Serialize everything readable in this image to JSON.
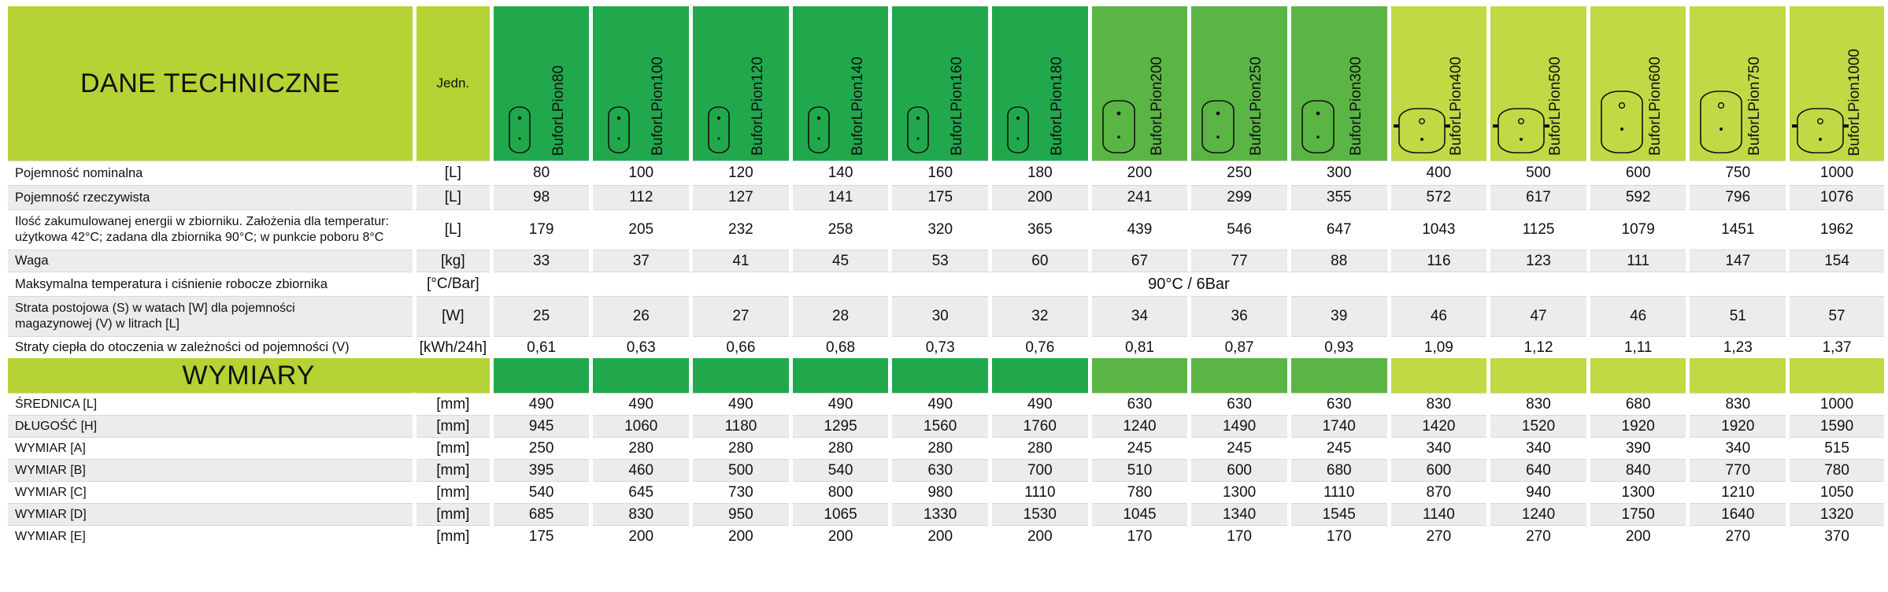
{
  "header": {
    "title": "DANE TECHNICZNE",
    "unit_header": "Jedn."
  },
  "models": [
    {
      "name": "BuforLPion80",
      "group": "g1",
      "tank": "s"
    },
    {
      "name": "BuforLPion100",
      "group": "g1",
      "tank": "s"
    },
    {
      "name": "BuforLPion120",
      "group": "g1",
      "tank": "s"
    },
    {
      "name": "BuforLPion140",
      "group": "g1",
      "tank": "s"
    },
    {
      "name": "BuforLPion160",
      "group": "g1",
      "tank": "s"
    },
    {
      "name": "BuforLPion180",
      "group": "g1",
      "tank": "s"
    },
    {
      "name": "BuforLPion200",
      "group": "g2",
      "tank": "m"
    },
    {
      "name": "BuforLPion250",
      "group": "g2",
      "tank": "m"
    },
    {
      "name": "BuforLPion300",
      "group": "g2",
      "tank": "m"
    },
    {
      "name": "BuforLPion400",
      "group": "g3",
      "tank": "w"
    },
    {
      "name": "BuforLPion500",
      "group": "g3",
      "tank": "w"
    },
    {
      "name": "BuforLPion600",
      "group": "g3",
      "tank": "t"
    },
    {
      "name": "BuforLPion750",
      "group": "g3",
      "tank": "t"
    },
    {
      "name": "BuforLPion1000",
      "group": "g3",
      "tank": "w"
    }
  ],
  "technical_rows": [
    {
      "label": "Pojemność nominalna",
      "unit": "[L]",
      "values": [
        "80",
        "100",
        "120",
        "140",
        "160",
        "180",
        "200",
        "250",
        "300",
        "400",
        "500",
        "600",
        "750",
        "1000"
      ]
    },
    {
      "label": "Pojemność rzeczywista",
      "unit": "[L]",
      "values": [
        "98",
        "112",
        "127",
        "141",
        "175",
        "200",
        "241",
        "299",
        "355",
        "572",
        "617",
        "592",
        "796",
        "1076"
      ]
    },
    {
      "label": "Ilość zakumulowanej energii w zbiorniku. Założenia dla temperatur: użytkowa 42°C; zadana dla zbiornika 90°C; w punkcie poboru 8°C",
      "label_line1": "Ilość zakumulowanej energii w zbiorniku. Założenia dla temperatur:",
      "label_line2": "użytkowa 42°C; zadana dla zbiornika 90°C; w punkcie poboru 8°C",
      "unit": "[L]",
      "values": [
        "179",
        "205",
        "232",
        "258",
        "320",
        "365",
        "439",
        "546",
        "647",
        "1043",
        "1125",
        "1079",
        "1451",
        "1962"
      ]
    },
    {
      "label": "Waga",
      "unit": "[kg]",
      "values": [
        "33",
        "37",
        "41",
        "45",
        "53",
        "60",
        "67",
        "77",
        "88",
        "116",
        "123",
        "111",
        "147",
        "154"
      ]
    },
    {
      "label": "Maksymalna temperatura i ciśnienie robocze zbiornika",
      "unit": "[°C/Bar]",
      "span_value": "90°C / 6Bar"
    },
    {
      "label_line1": "Strata postojowa (S) w watach [W] dla pojemności",
      "label_line2": "magazynowej (V) w litrach [L]",
      "unit": "[W]",
      "values": [
        "25",
        "26",
        "27",
        "28",
        "30",
        "32",
        "34",
        "36",
        "39",
        "46",
        "47",
        "46",
        "51",
        "57"
      ]
    },
    {
      "label": "Straty ciepła do otoczenia w zależności od pojemności (V)",
      "unit": "[kWh/24h]",
      "values": [
        "0,61",
        "0,63",
        "0,66",
        "0,68",
        "0,73",
        "0,76",
        "0,81",
        "0,87",
        "0,93",
        "1,09",
        "1,12",
        "1,11",
        "1,23",
        "1,37"
      ]
    }
  ],
  "dimensions_section": {
    "title": "WYMIARY"
  },
  "dimension_rows": [
    {
      "label": "ŚREDNICA [L]",
      "unit": "[mm]",
      "values": [
        "490",
        "490",
        "490",
        "490",
        "490",
        "490",
        "630",
        "630",
        "630",
        "830",
        "830",
        "680",
        "830",
        "1000"
      ]
    },
    {
      "label": "DŁUGOŚĆ [H]",
      "unit": "[mm]",
      "values": [
        "945",
        "1060",
        "1180",
        "1295",
        "1560",
        "1760",
        "1240",
        "1490",
        "1740",
        "1420",
        "1520",
        "1920",
        "1920",
        "1590"
      ]
    },
    {
      "label": "WYMIAR [A]",
      "unit": "[mm]",
      "values": [
        "250",
        "280",
        "280",
        "280",
        "280",
        "280",
        "245",
        "245",
        "245",
        "340",
        "340",
        "390",
        "340",
        "515"
      ]
    },
    {
      "label": "WYMIAR [B]",
      "unit": "[mm]",
      "values": [
        "395",
        "460",
        "500",
        "540",
        "630",
        "700",
        "510",
        "600",
        "680",
        "600",
        "640",
        "840",
        "770",
        "780"
      ]
    },
    {
      "label": "WYMIAR [C]",
      "unit": "[mm]",
      "values": [
        "540",
        "645",
        "730",
        "800",
        "980",
        "1110",
        "780",
        "1300",
        "1110",
        "870",
        "940",
        "1300",
        "1210",
        "1050"
      ]
    },
    {
      "label": "WYMIAR [D]",
      "unit": "[mm]",
      "values": [
        "685",
        "830",
        "950",
        "1065",
        "1330",
        "1530",
        "1045",
        "1340",
        "1545",
        "1140",
        "1240",
        "1750",
        "1640",
        "1320"
      ]
    },
    {
      "label": "WYMIAR [E]",
      "unit": "[mm]",
      "values": [
        "175",
        "200",
        "200",
        "200",
        "200",
        "200",
        "170",
        "170",
        "170",
        "270",
        "270",
        "200",
        "270",
        "370"
      ]
    }
  ],
  "colors": {
    "header_lime": "#b5d334",
    "model_green_dark": "#21a84d",
    "model_green_mid": "#5bb545",
    "model_green_light": "#c0d944",
    "row_alt": "#ececec"
  }
}
